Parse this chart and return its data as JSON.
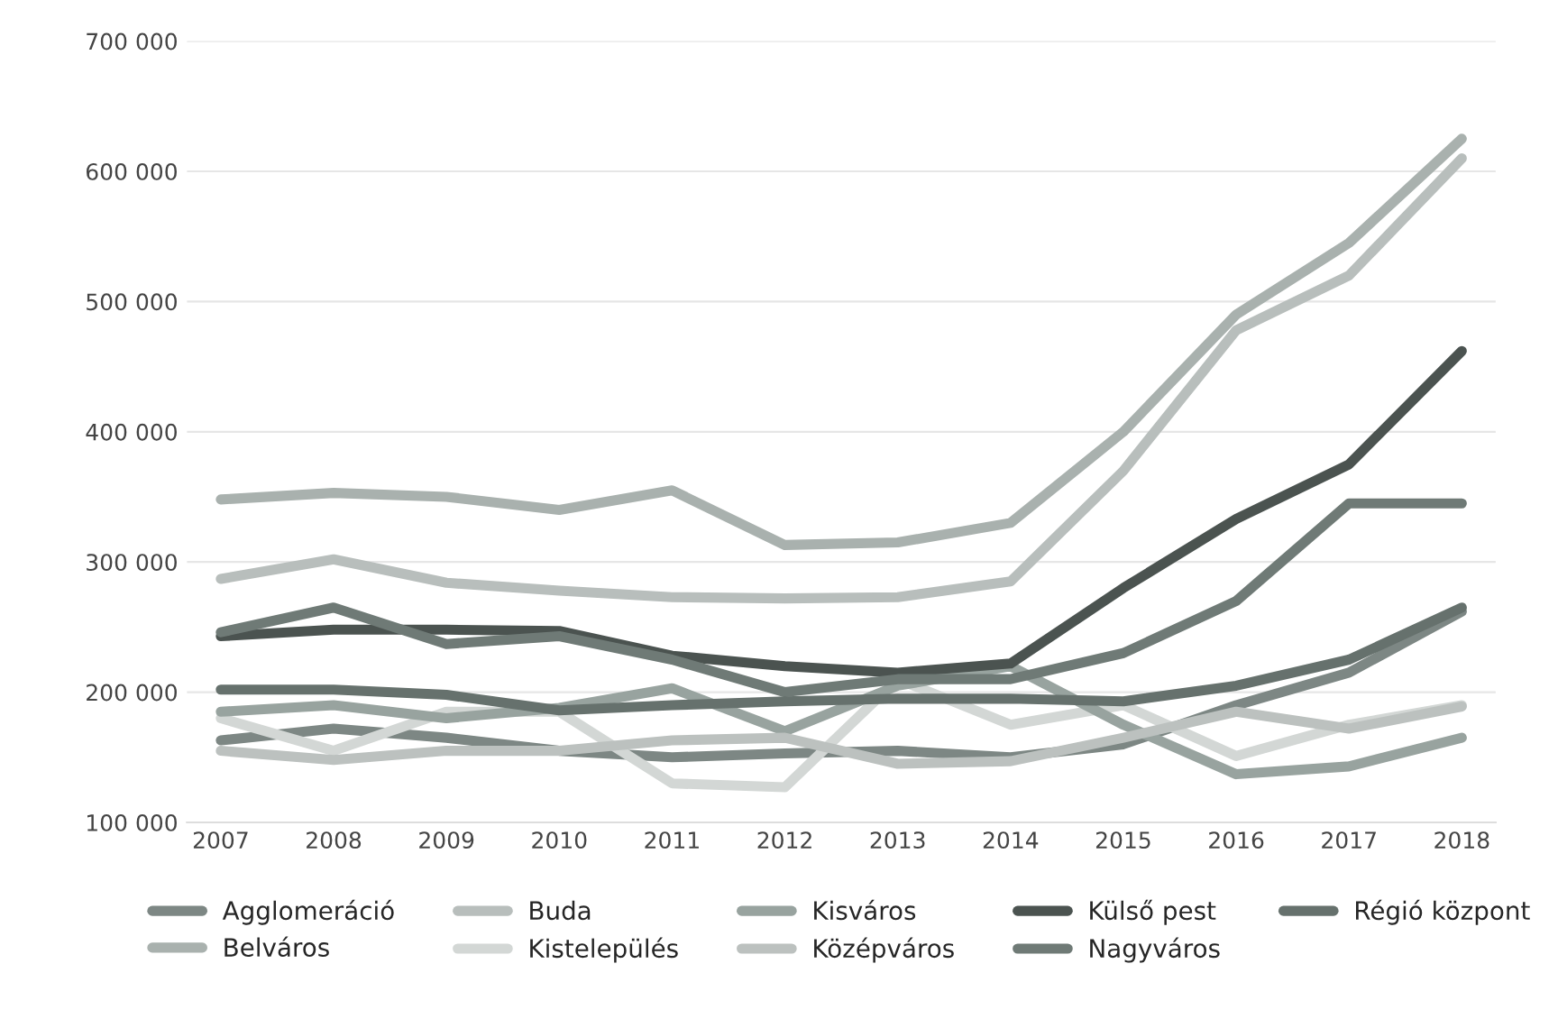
{
  "chart_data": {
    "type": "line",
    "categories": [
      "2007",
      "2008",
      "2009",
      "2010",
      "2011",
      "2012",
      "2013",
      "2014",
      "2015",
      "2016",
      "2017",
      "2018"
    ],
    "ylim": [
      100000,
      700000
    ],
    "yticks": [
      {
        "value": 100000,
        "label": "100 000"
      },
      {
        "value": 200000,
        "label": "200 000"
      },
      {
        "value": 300000,
        "label": "300 000"
      },
      {
        "value": 400000,
        "label": "400 000"
      },
      {
        "value": 500000,
        "label": "500 000"
      },
      {
        "value": 600000,
        "label": "600 000"
      },
      {
        "value": 700000,
        "label": "700 000"
      }
    ],
    "grid": "y",
    "legend": "bottom",
    "marker": "none",
    "line_style": "solid",
    "series": [
      {
        "name": "Agglomeráció",
        "color": "#7d8784",
        "values": [
          163000,
          172000,
          165000,
          155000,
          150000,
          153000,
          155000,
          150000,
          160000,
          190000,
          215000,
          262000
        ]
      },
      {
        "name": "Belváros",
        "color": "#a9b1ae",
        "values": [
          348000,
          353000,
          350000,
          340000,
          355000,
          313000,
          315000,
          330000,
          400000,
          490000,
          545000,
          625000
        ]
      },
      {
        "name": "Buda",
        "color": "#b8bebc",
        "values": [
          287000,
          302000,
          284000,
          278000,
          273000,
          272000,
          273000,
          285000,
          370000,
          478000,
          520000,
          610000
        ]
      },
      {
        "name": "Kistelepülés",
        "color": "#d3d7d5",
        "values": [
          180000,
          155000,
          185000,
          185000,
          130000,
          127000,
          210000,
          175000,
          190000,
          151000,
          175000,
          190000
        ]
      },
      {
        "name": "Kisváros",
        "color": "#98a39f",
        "values": [
          185000,
          190000,
          180000,
          188000,
          203000,
          170000,
          205000,
          220000,
          175000,
          137000,
          143000,
          165000
        ]
      },
      {
        "name": "Középváros",
        "color": "#bcc1bf",
        "values": [
          155000,
          148000,
          155000,
          155000,
          163000,
          165000,
          145000,
          147000,
          165000,
          185000,
          172000,
          189000
        ]
      },
      {
        "name": "Külső pest",
        "color": "#4b5350",
        "values": [
          243000,
          248000,
          248000,
          247000,
          228000,
          220000,
          215000,
          222000,
          280000,
          333000,
          375000,
          462000
        ]
      },
      {
        "name": "Nagyváros",
        "color": "#6f7a76",
        "values": [
          246000,
          265000,
          237000,
          243000,
          225000,
          200000,
          210000,
          210000,
          230000,
          270000,
          345000,
          345000
        ]
      },
      {
        "name": "Régió központ",
        "color": "#66716d",
        "values": [
          202000,
          202000,
          198000,
          186000,
          190000,
          193000,
          195000,
          195000,
          193000,
          205000,
          225000,
          265000
        ]
      }
    ]
  }
}
